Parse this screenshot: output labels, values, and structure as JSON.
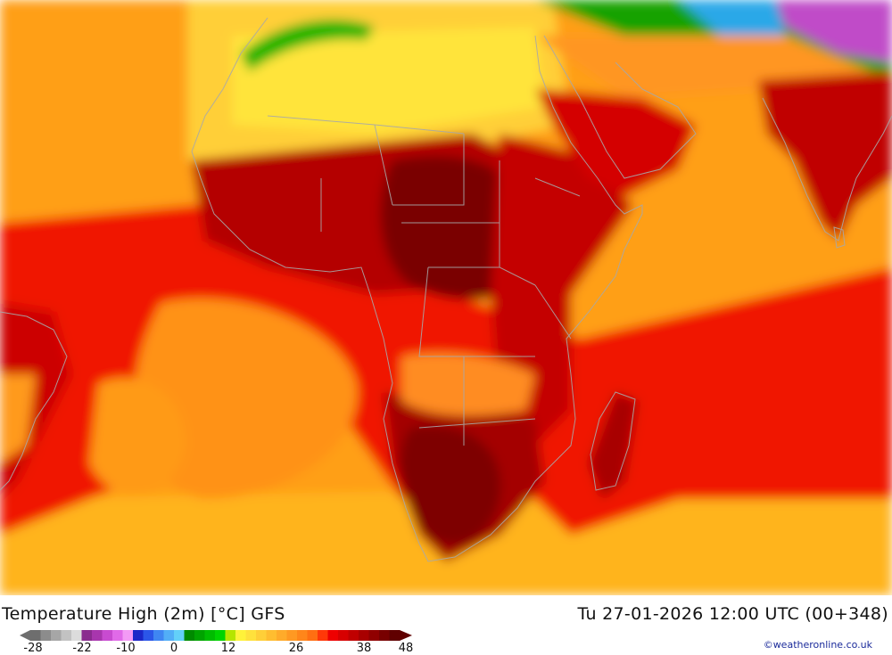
{
  "title": "Temperature High (2m) [°C] GFS",
  "valid_time": "Tu 27-01-2026 12:00 UTC (00+348)",
  "credit": "©weatheronline.co.uk",
  "legend": {
    "labels": [
      "-28",
      "-22",
      "-10",
      "0",
      "12",
      "26",
      "38",
      "48"
    ],
    "colors": [
      "#6e6e6e",
      "#8c8c8c",
      "#a6a6a6",
      "#c2c2c2",
      "#dcdcdc",
      "#8a2b8e",
      "#a836ad",
      "#c84bd0",
      "#e06ae8",
      "#f39af5",
      "#1b27c8",
      "#2b56e8",
      "#3f86f2",
      "#52aef7",
      "#63d0f9",
      "#008a00",
      "#00a300",
      "#00bc00",
      "#00d400",
      "#b6e500",
      "#fff23a",
      "#ffe13c",
      "#ffcf38",
      "#ffbd30",
      "#ffab2a",
      "#ff9922",
      "#ff861a",
      "#ff6f12",
      "#ff3808",
      "#ee0000",
      "#d70000",
      "#c00000",
      "#a80000",
      "#900000",
      "#780000",
      "#600000"
    ]
  },
  "map": {
    "ocean_color": "#ff9f14",
    "land_hot_color": "#b40000",
    "coast_line_color": "#a8a8a8"
  }
}
